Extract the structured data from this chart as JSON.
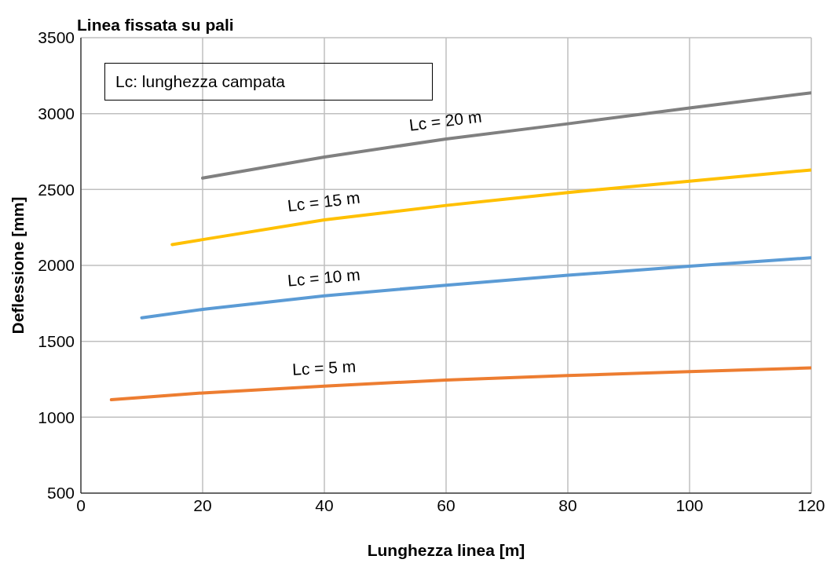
{
  "chart_data": {
    "type": "line",
    "title": "Linea fissata su pali",
    "xlabel": "Lunghezza linea [m]",
    "ylabel": "Deflessione [mm]",
    "annotations": [
      "Lc: lunghezza campata"
    ],
    "xlim": [
      0,
      120
    ],
    "xticks": [
      0,
      20,
      40,
      60,
      80,
      100,
      120
    ],
    "ylim": [
      500,
      3500
    ],
    "yticks": [
      500,
      1000,
      1500,
      2000,
      2500,
      3000,
      3500
    ],
    "grid": true,
    "legend": false,
    "line_style": "solid",
    "series": [
      {
        "name": "Lc = 5 m",
        "color": "#ed7d31",
        "x": [
          5,
          20,
          40,
          60,
          80,
          100,
          120
        ],
        "values": [
          1115,
          1160,
          1205,
          1245,
          1275,
          1300,
          1325
        ]
      },
      {
        "name": "Lc = 10 m",
        "color": "#5b9bd5",
        "x": [
          10,
          20,
          40,
          60,
          80,
          100,
          120
        ],
        "values": [
          1655,
          1710,
          1800,
          1870,
          1935,
          1995,
          2050
        ]
      },
      {
        "name": "Lc = 15 m",
        "color": "#ffc000",
        "x": [
          15,
          20,
          40,
          60,
          80,
          100,
          120
        ],
        "values": [
          2137,
          2170,
          2300,
          2395,
          2480,
          2555,
          2629
        ]
      },
      {
        "name": "Lc = 20 m",
        "color": "#808080",
        "x": [
          20,
          40,
          60,
          80,
          100,
          120
        ],
        "values": [
          2575,
          2714,
          2833,
          2933,
          3037,
          3137
        ]
      }
    ]
  }
}
